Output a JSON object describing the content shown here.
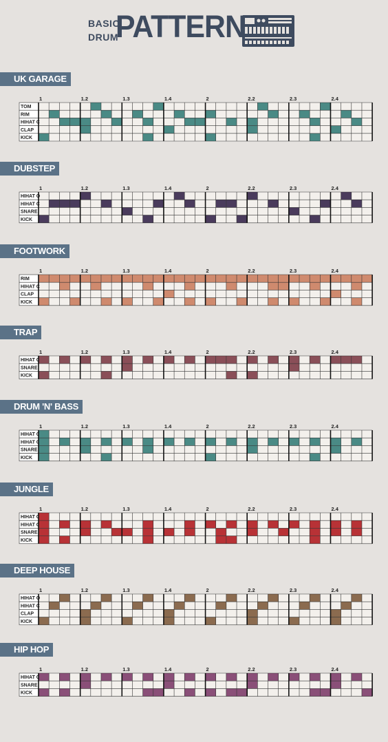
{
  "header": {
    "line1": "BASIC",
    "line2": "DRUM",
    "title": "PATTERNS"
  },
  "beat_labels": [
    "1",
    "1.2",
    "1.3",
    "1.4",
    "2",
    "2.2",
    "2.3",
    "2.4"
  ],
  "sections": [
    {
      "title": "UK GARAGE",
      "color": "#4a8a85",
      "rows": [
        {
          "label": "TOM",
          "steps": [
            5,
            11,
            21,
            27
          ]
        },
        {
          "label": "RIM",
          "steps": [
            1,
            6,
            9,
            13,
            16,
            22,
            25,
            29
          ]
        },
        {
          "label": "HIHAT C",
          "steps": [
            2,
            3,
            4,
            7,
            10,
            14,
            15,
            18,
            20,
            26,
            30
          ]
        },
        {
          "label": "CLAP",
          "steps": [
            4,
            12,
            20,
            28
          ]
        },
        {
          "label": "KICK",
          "steps": [
            0,
            10,
            16,
            26
          ]
        }
      ]
    },
    {
      "title": "DUBSTEP",
      "color": "#4a3b5c",
      "rows": [
        {
          "label": "HIHAT O",
          "steps": [
            4,
            13,
            20,
            29
          ]
        },
        {
          "label": "HIHAT C",
          "steps": [
            1,
            2,
            3,
            6,
            11,
            14,
            17,
            18,
            22,
            27,
            30
          ]
        },
        {
          "label": "SNARE",
          "steps": [
            8,
            24
          ]
        },
        {
          "label": "KICK",
          "steps": [
            0,
            10,
            16,
            19,
            26
          ]
        }
      ]
    },
    {
      "title": "FOOTWORK",
      "color": "#cf8a6e",
      "rows": [
        {
          "label": "RIM",
          "steps": [
            0,
            1,
            2,
            3,
            4,
            5,
            6,
            7,
            8,
            9,
            10,
            11,
            12,
            13,
            14,
            15,
            16,
            17,
            18,
            19,
            20,
            21,
            22,
            23,
            24,
            25,
            26,
            27,
            28,
            29,
            30,
            31
          ]
        },
        {
          "label": "HIHAT C",
          "steps": [
            2,
            5,
            10,
            14,
            18,
            22,
            23,
            26,
            30
          ]
        },
        {
          "label": "CLAP",
          "steps": [
            12,
            28
          ]
        },
        {
          "label": "KICK",
          "steps": [
            0,
            3,
            6,
            8,
            11,
            14,
            16,
            19,
            22,
            24,
            27,
            30
          ]
        }
      ]
    },
    {
      "title": "TRAP",
      "color": "#8a4f58",
      "rows": [
        {
          "label": "HIHAT C",
          "steps": [
            0,
            2,
            4,
            6,
            8,
            10,
            12,
            14,
            16,
            17,
            18,
            20,
            22,
            24,
            26,
            28,
            29,
            30
          ]
        },
        {
          "label": "SNARE",
          "steps": [
            8,
            24
          ]
        },
        {
          "label": "KICK",
          "steps": [
            0,
            6,
            18,
            20
          ]
        }
      ]
    },
    {
      "title": "DRUM 'N' BASS",
      "color": "#4a8a85",
      "rows": [
        {
          "label": "HIHAT O",
          "steps": [
            0
          ]
        },
        {
          "label": "HIHAT C",
          "steps": [
            0,
            2,
            4,
            6,
            8,
            10,
            12,
            14,
            16,
            18,
            20,
            22,
            24,
            26,
            28,
            30
          ]
        },
        {
          "label": "SNARE",
          "steps": [
            0,
            4,
            10,
            20,
            28
          ]
        },
        {
          "label": "KICK",
          "steps": [
            0,
            6,
            16,
            26
          ]
        }
      ]
    },
    {
      "title": "JUNGLE",
      "color": "#b83236",
      "rows": [
        {
          "label": "HIHAT O",
          "steps": [
            0
          ]
        },
        {
          "label": "HIHAT C",
          "steps": [
            0,
            2,
            4,
            6,
            10,
            14,
            16,
            18,
            20,
            22,
            24,
            26,
            28,
            30
          ]
        },
        {
          "label": "SNARE",
          "steps": [
            0,
            4,
            7,
            8,
            10,
            12,
            14,
            17,
            20,
            23,
            26,
            28,
            30
          ]
        },
        {
          "label": "KICK",
          "steps": [
            0,
            2,
            10,
            17,
            18,
            26
          ]
        }
      ]
    },
    {
      "title": "DEEP HOUSE",
      "color": "#8b6b4f",
      "rows": [
        {
          "label": "HIHAT O",
          "steps": [
            2,
            6,
            10,
            14,
            18,
            22,
            26,
            30
          ]
        },
        {
          "label": "HIHAT C",
          "steps": [
            1,
            5,
            9,
            13,
            17,
            21,
            25,
            29
          ]
        },
        {
          "label": "CLAP",
          "steps": [
            4,
            12,
            20,
            28
          ]
        },
        {
          "label": "KICK",
          "steps": [
            0,
            4,
            8,
            12,
            16,
            20,
            24,
            28
          ]
        }
      ]
    },
    {
      "title": "HIP HOP",
      "color": "#8a4f78",
      "rows": [
        {
          "label": "HIHAT C",
          "steps": [
            0,
            2,
            4,
            6,
            8,
            10,
            12,
            14,
            16,
            18,
            20,
            22,
            24,
            26,
            28,
            30
          ]
        },
        {
          "label": "SNARE",
          "steps": [
            4,
            12,
            20,
            28
          ]
        },
        {
          "label": "KICK",
          "steps": [
            0,
            2,
            10,
            11,
            14,
            16,
            18,
            19,
            26,
            27,
            31
          ]
        }
      ]
    }
  ]
}
